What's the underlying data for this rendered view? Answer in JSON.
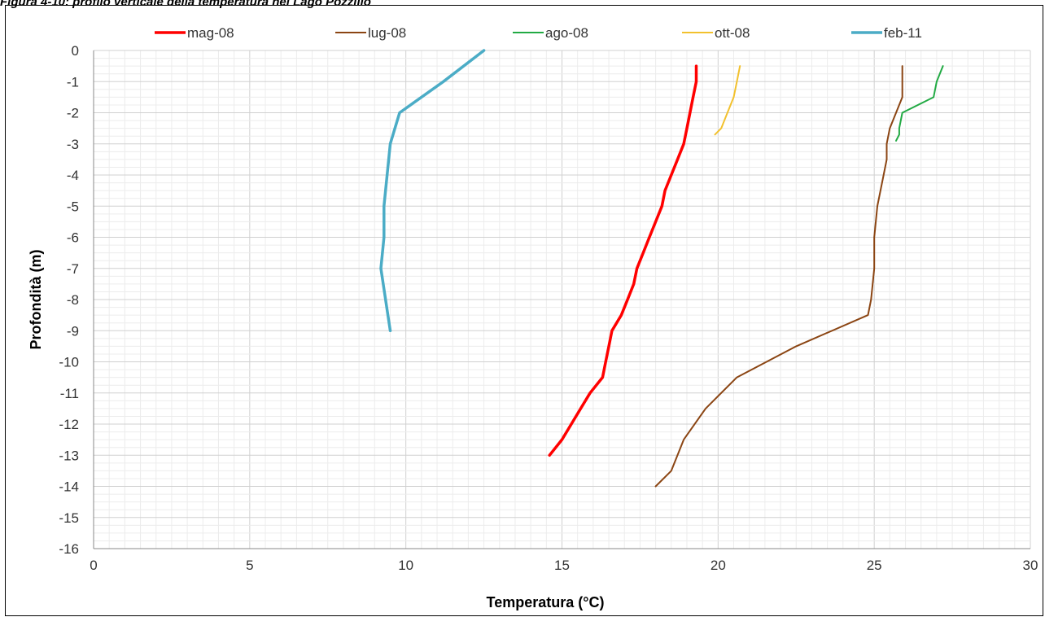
{
  "figure_caption": "Figura 4-10: profilo verticale della temperatura nel Lago Pozzillo",
  "chart_data": {
    "type": "line",
    "title": "",
    "xlabel": "Temperatura (°C)",
    "ylabel": "Profondità (m)",
    "xlim": [
      0,
      30
    ],
    "ylim": [
      -16,
      0
    ],
    "x_ticks": [
      "0",
      "5",
      "10",
      "15",
      "20",
      "25",
      "30"
    ],
    "y_ticks": [
      "0",
      "-1",
      "-2",
      "-3",
      "-4",
      "-5",
      "-6",
      "-7",
      "-8",
      "-9",
      "-10",
      "-11",
      "-12",
      "-13",
      "-14",
      "-15",
      "-16"
    ],
    "grid": "major and minor",
    "legend_position": "top",
    "series": [
      {
        "name": "mag-08",
        "color": "#ff0000",
        "x": [
          19.3,
          19.3,
          19.2,
          19.1,
          19.0,
          18.9,
          18.7,
          18.5,
          18.3,
          18.2,
          18.0,
          17.8,
          17.6,
          17.4,
          17.3,
          17.1,
          16.9,
          16.6,
          16.5,
          16.4,
          16.3,
          15.9,
          15.6,
          15.3,
          15.0,
          14.6
        ],
        "y": [
          -0.5,
          -1.0,
          -1.5,
          -2.0,
          -2.5,
          -3.0,
          -3.5,
          -4.0,
          -4.5,
          -5.0,
          -5.5,
          -6.0,
          -6.5,
          -7.0,
          -7.5,
          -8.0,
          -8.5,
          -9.0,
          -9.5,
          -10.0,
          -10.5,
          -11.0,
          -11.5,
          -12.0,
          -12.5,
          -13.0
        ]
      },
      {
        "name": "lug-08",
        "color": "#8b4513",
        "x": [
          25.9,
          25.9,
          25.9,
          25.7,
          25.5,
          25.4,
          25.4,
          25.3,
          25.1,
          25.0,
          25.0,
          24.9,
          24.8,
          22.5,
          20.6,
          19.6,
          18.9,
          18.5,
          18.0
        ],
        "y": [
          -0.5,
          -1.0,
          -1.5,
          -2.0,
          -2.5,
          -3.0,
          -3.5,
          -4.0,
          -5.0,
          -6.0,
          -7.0,
          -8.0,
          -8.5,
          -9.5,
          -10.5,
          -11.5,
          -12.5,
          -13.5,
          -14.0
        ]
      },
      {
        "name": "ago-08",
        "color": "#22aa44",
        "x": [
          27.2,
          27.0,
          26.9,
          25.9,
          25.8,
          25.8,
          25.7
        ],
        "y": [
          -0.5,
          -1.0,
          -1.5,
          -2.0,
          -2.5,
          -2.7,
          -2.9
        ]
      },
      {
        "name": "ott-08",
        "color": "#f2c12e",
        "x": [
          20.7,
          20.6,
          20.5,
          20.3,
          20.1,
          19.9
        ],
        "y": [
          -0.5,
          -1.0,
          -1.5,
          -2.0,
          -2.5,
          -2.7
        ]
      },
      {
        "name": "feb-11",
        "color": "#4bacc6",
        "x": [
          12.5,
          11.2,
          9.8,
          9.5,
          9.3,
          9.3,
          9.2,
          9.5
        ],
        "y": [
          0.0,
          -1.0,
          -2.0,
          -3.0,
          -5.0,
          -6.0,
          -7.0,
          -9.0
        ]
      }
    ]
  }
}
